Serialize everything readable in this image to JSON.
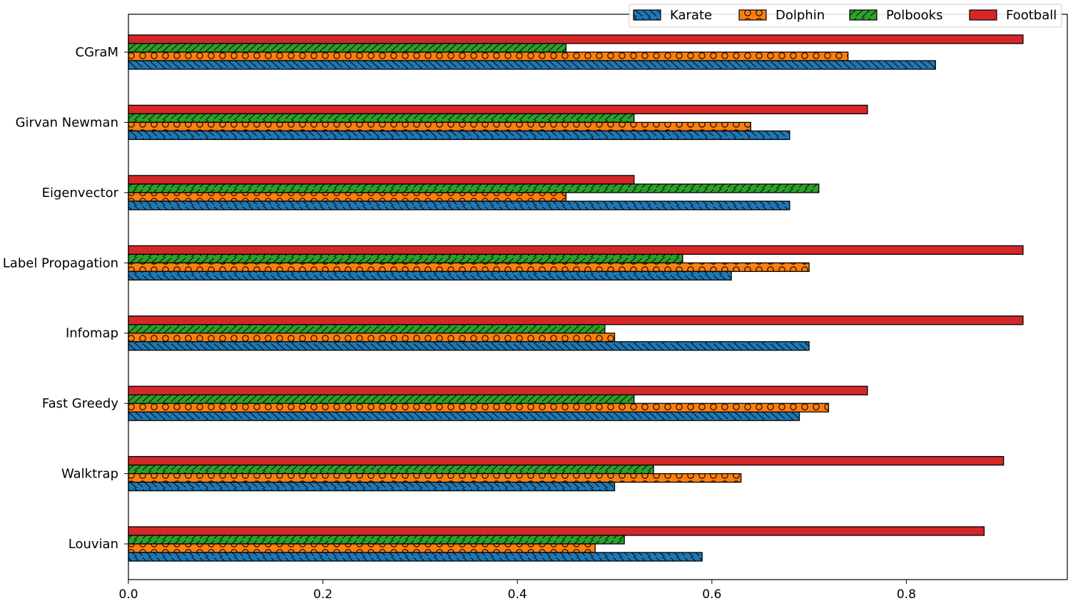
{
  "chart_data": {
    "type": "bar",
    "orientation": "horizontal",
    "title": "",
    "xlabel": "",
    "ylabel": "",
    "xlim": [
      0,
      0.97
    ],
    "xticks": [
      0.0,
      0.2,
      0.4,
      0.6,
      0.8
    ],
    "xtick_labels": [
      "0.0",
      "0.2",
      "0.4",
      "0.6",
      "0.8"
    ],
    "grid": false,
    "legend_position": "top-right",
    "categories": [
      "CGraM",
      "Girvan Newman",
      "Eigenvector",
      "Label Propagation",
      "Infomap",
      "Fast Greedy",
      "Walktrap",
      "Louvian"
    ],
    "series": [
      {
        "name": "Karate",
        "color": "#1f77b4",
        "hatch": "back-diagonal",
        "values": [
          0.83,
          0.68,
          0.68,
          0.62,
          0.7,
          0.69,
          0.5,
          0.59
        ]
      },
      {
        "name": "Dolphin",
        "color": "#ff7f0e",
        "hatch": "circles",
        "values": [
          0.74,
          0.64,
          0.45,
          0.7,
          0.5,
          0.72,
          0.63,
          0.48
        ]
      },
      {
        "name": "Polbooks",
        "color": "#2ca02c",
        "hatch": "forward-diagonal",
        "values": [
          0.45,
          0.52,
          0.71,
          0.57,
          0.49,
          0.52,
          0.54,
          0.51
        ]
      },
      {
        "name": "Football",
        "color": "#d62728",
        "hatch": "none",
        "values": [
          0.92,
          0.76,
          0.52,
          0.92,
          0.92,
          0.76,
          0.9,
          0.88
        ]
      }
    ]
  }
}
